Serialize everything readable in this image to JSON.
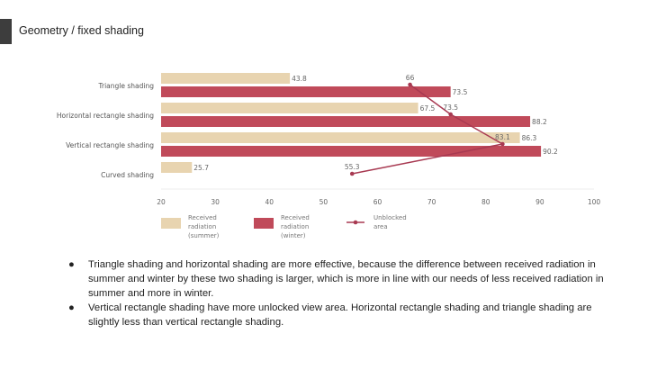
{
  "header": {
    "title": "Geometry / fixed shading"
  },
  "chart_data": {
    "type": "bar",
    "orientation": "horizontal",
    "categories": [
      "Triangle shading",
      "Horizontal rectangle shading",
      "Vertical rectangle shading",
      "Curved shading"
    ],
    "series": [
      {
        "name": "Received radiation (summer)",
        "kind": "bar",
        "color": "#e8d4b0",
        "values": [
          43.8,
          67.5,
          86.3,
          25.7
        ],
        "labels": [
          "43.8",
          "67.5",
          "86.3",
          "25.7"
        ]
      },
      {
        "name": "Received radiation (winter)",
        "kind": "bar",
        "color": "#c04a5a",
        "values": [
          73.5,
          88.2,
          90.2,
          null
        ],
        "labels": [
          "73.5",
          "88.2",
          "90.2",
          ""
        ]
      },
      {
        "name": "Unblocked area",
        "kind": "line",
        "color": "#a83a52",
        "values": [
          66,
          73.5,
          83.1,
          55.3
        ],
        "labels": [
          "66",
          "73.5",
          "83.1",
          "55.3"
        ]
      }
    ],
    "legend_lines": [
      [
        "Received",
        "radiation",
        "(summer)"
      ],
      [
        "Received",
        "radiation",
        "(winter)"
      ],
      [
        "Unblocked",
        "area"
      ]
    ],
    "xlim": [
      20,
      100
    ],
    "xticks": [
      "20",
      "30",
      "40",
      "50",
      "60",
      "70",
      "80",
      "90",
      "100"
    ],
    "legend_placement": "bottom-left",
    "grid": false
  },
  "bullets": [
    "Triangle shading and horizontal shading are more effective,  because the difference between received radiation in summer and winter by these two shading is larger, which is more in line with our needs of less received radiation in summer and more in winter.",
    "Vertical rectangle shading have more unlocked view area. Horizontal rectangle shading and triangle shading are slightly less than vertical rectangle shading."
  ],
  "bullet_char": "●"
}
